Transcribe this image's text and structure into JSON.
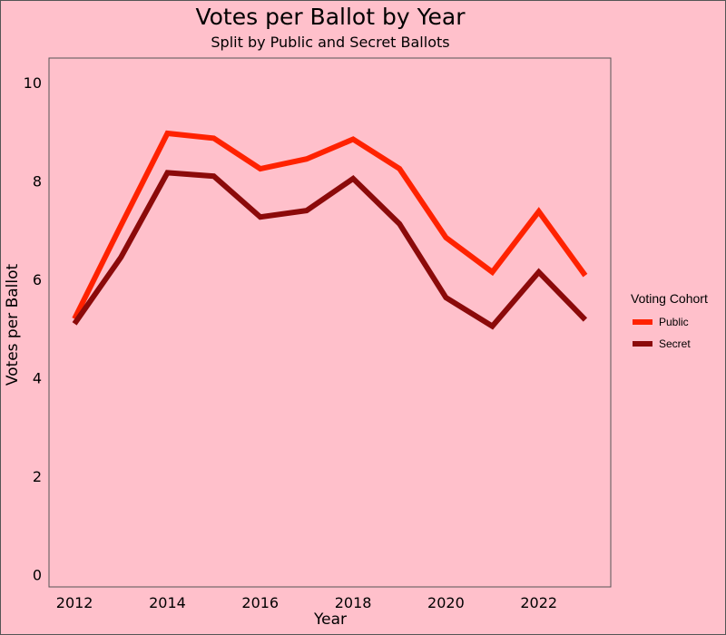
{
  "chart_data": {
    "type": "line",
    "title": "Votes per Ballot by Year",
    "subtitle": "Split by Public and Secret Ballots",
    "xlabel": "Year",
    "ylabel": "Votes per Ballot",
    "x": [
      2012,
      2013,
      2014,
      2015,
      2016,
      2017,
      2018,
      2019,
      2020,
      2021,
      2022,
      2023
    ],
    "xlim": [
      2011.45,
      2023.55
    ],
    "ylim": [
      -0.25,
      10.5
    ],
    "xticks": [
      2012,
      2014,
      2016,
      2018,
      2020,
      2022
    ],
    "yticks": [
      0,
      2,
      4,
      6,
      8,
      10
    ],
    "grid": false,
    "legend": {
      "title": "Voting Cohort",
      "position": "right"
    },
    "series": [
      {
        "name": "Public",
        "color": "#ff2200",
        "values": [
          5.2,
          7.1,
          8.97,
          8.87,
          8.25,
          8.45,
          8.85,
          8.25,
          6.85,
          6.15,
          7.38,
          6.08
        ]
      },
      {
        "name": "Secret",
        "color": "#8b0a0a",
        "values": [
          5.1,
          6.45,
          8.17,
          8.1,
          7.27,
          7.4,
          8.05,
          7.13,
          5.63,
          5.05,
          6.15,
          5.18
        ]
      }
    ]
  }
}
